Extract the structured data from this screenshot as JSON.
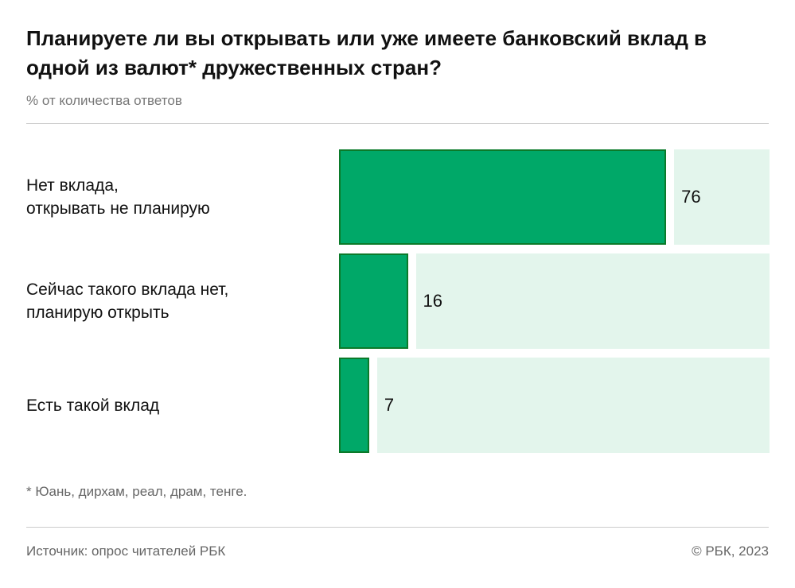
{
  "chart_data": {
    "type": "bar",
    "orientation": "horizontal",
    "title": "Планируете ли вы открывать или уже имеете банковский вклад в одной из валют* дружественных стран?",
    "subtitle": "% от количества ответов",
    "categories": [
      "Нет вклада,\nоткрывать не планирую",
      "Сейчас такого вклада нет,\nпланирую открыть",
      "Есть такой вклад"
    ],
    "values": [
      76,
      16,
      7
    ],
    "xlim": [
      0,
      100
    ],
    "footnote": "* Юань, дирхам, реал, драм, тенге.",
    "source": "Источник: опрос читателей РБК",
    "copyright": "© РБК, 2023",
    "colors": {
      "bar": "#00a868",
      "track": "#e3f5ec"
    }
  }
}
